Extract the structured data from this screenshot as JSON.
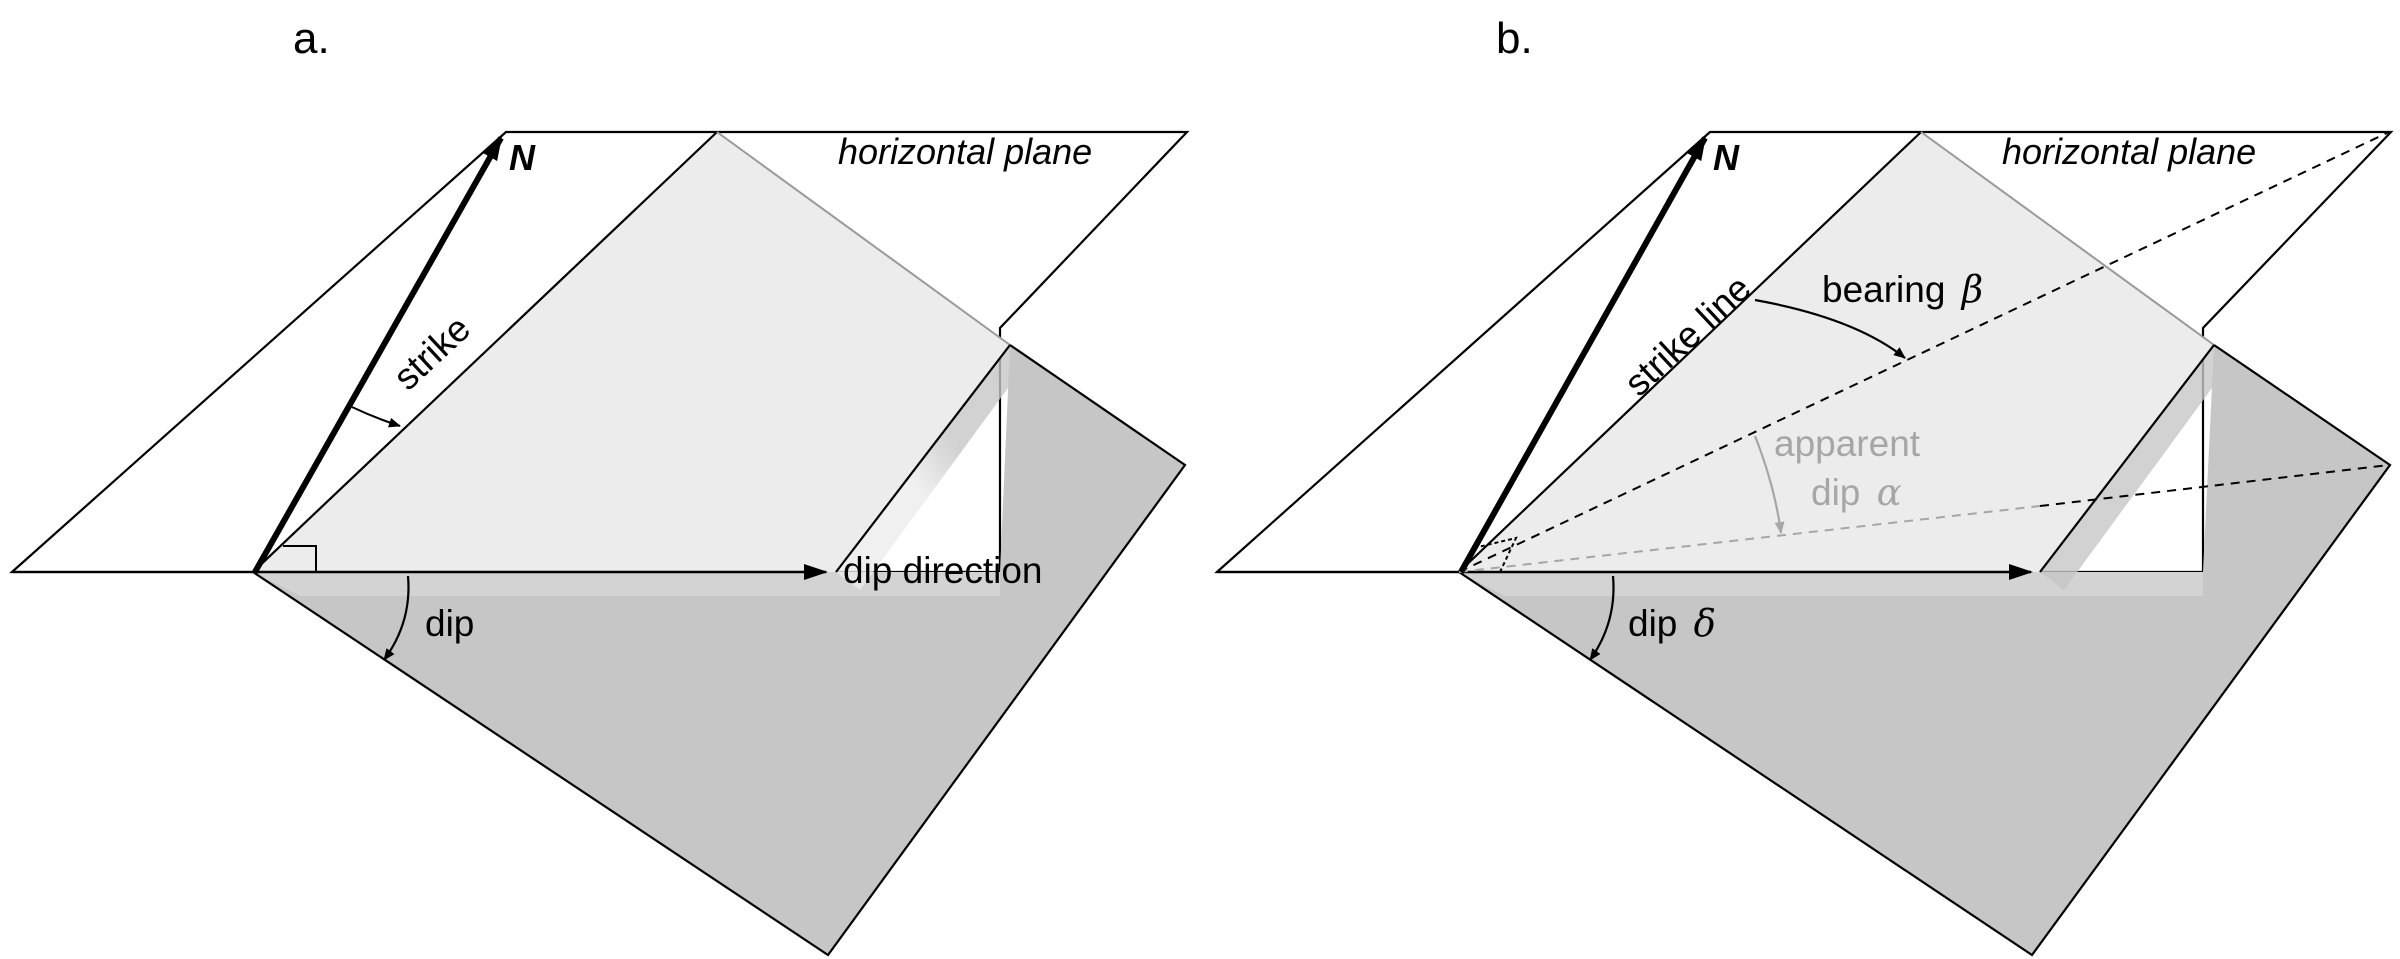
{
  "colors": {
    "dipping_plane_upper": "#ececec",
    "dipping_plane_lower": "#c6c6c6",
    "apparent_dip": "#a6a6a6",
    "ink": "#000000"
  },
  "panel_a": {
    "letter": "a.",
    "north_label": "N",
    "plane_label": "horizontal plane",
    "strike_label": "strike",
    "dip_direction_label": "dip direction",
    "dip_label": "dip"
  },
  "panel_b": {
    "letter": "b.",
    "north_label": "N",
    "plane_label": "horizontal plane",
    "strike_line_label": "strike line",
    "bearing_label": "bearing",
    "bearing_symbol": "β",
    "apparent_label": "apparent",
    "apparent_dip_label": "dip",
    "apparent_dip_symbol": "α",
    "dip_label": "dip",
    "dip_symbol": "δ"
  }
}
